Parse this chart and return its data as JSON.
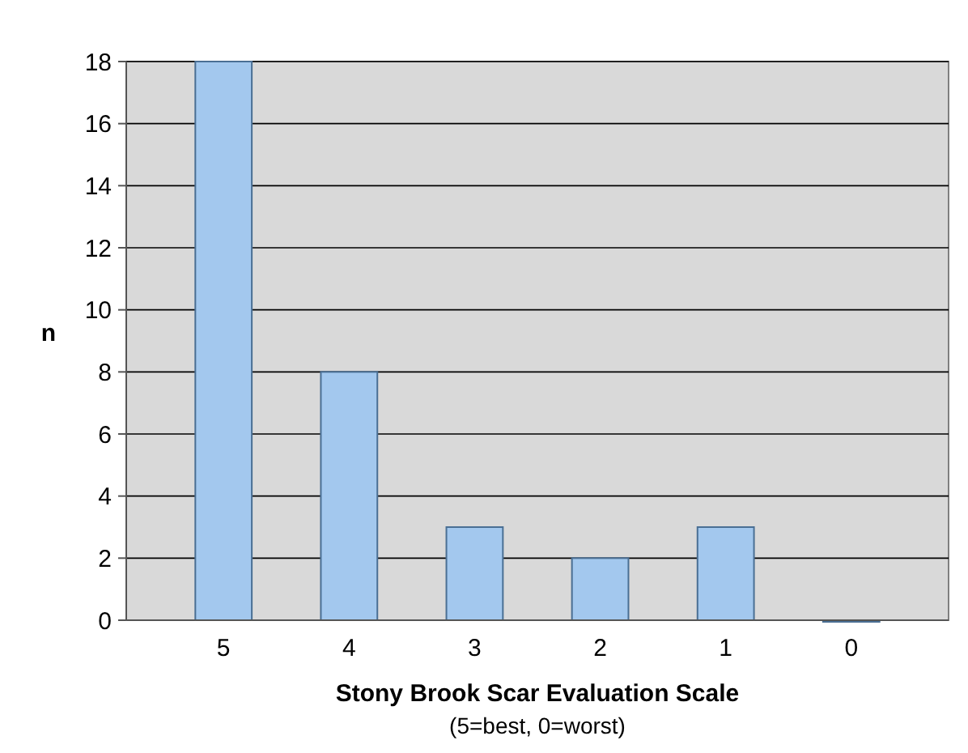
{
  "chart_data": {
    "type": "bar",
    "xlabel": "Stony Brook Scar Evaluation Scale",
    "ylabel": "n",
    "annotations": [
      "(5=best, 0=worst)"
    ],
    "categories": [
      "5",
      "4",
      "3",
      "2",
      "1",
      "0"
    ],
    "values": [
      18,
      8,
      3,
      2,
      3,
      0
    ],
    "color": "#a3c8ee",
    "ylim": [
      0,
      18
    ],
    "yticks": [
      0,
      2,
      4,
      6,
      8,
      10,
      12,
      14,
      16,
      18
    ],
    "grid": "y"
  }
}
